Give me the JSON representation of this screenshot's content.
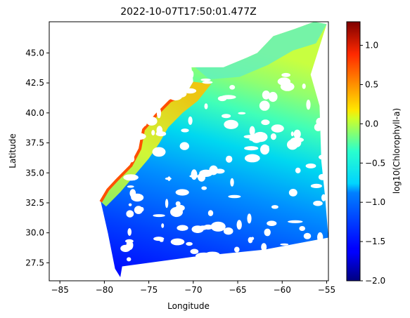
{
  "chart_data": {
    "type": "heatmap",
    "title": "2022-10-07T17:50:01.477Z",
    "xlabel": "Longitude",
    "ylabel": "Latitude",
    "xlim": [
      -86.2,
      -54.8
    ],
    "ylim": [
      26.0,
      47.6
    ],
    "x_ticks": [
      -85,
      -80,
      -75,
      -70,
      -65,
      -60,
      -55
    ],
    "x_tick_labels": [
      "−85",
      "−80",
      "−75",
      "−70",
      "−65",
      "−60",
      "−55"
    ],
    "y_ticks": [
      27.5,
      30.0,
      32.5,
      35.0,
      37.5,
      40.0,
      42.5,
      45.0
    ],
    "y_tick_labels": [
      "27.5",
      "30.0",
      "32.5",
      "35.0",
      "37.5",
      "40.0",
      "42.5",
      "45.0"
    ],
    "colorbar": {
      "label": "log10(Chlorophyll-a)",
      "colormap": "jet",
      "range": [
        -2.0,
        1.3
      ],
      "ticks": [
        -2.0,
        -1.5,
        -1.0,
        -0.5,
        0.0,
        0.5,
        1.0
      ],
      "tick_labels": [
        "−2.0",
        "−1.5",
        "−1.0",
        "−0.5",
        "0.0",
        "0.5",
        "1.0"
      ]
    },
    "swath_polygon_lonlat": [
      [
        -80.4,
        32.6
      ],
      [
        -79.6,
        33.6
      ],
      [
        -78.6,
        34.4
      ],
      [
        -77.0,
        35.6
      ],
      [
        -76.0,
        37.0
      ],
      [
        -75.6,
        38.6
      ],
      [
        -74.2,
        39.8
      ],
      [
        -72.6,
        41.0
      ],
      [
        -70.8,
        41.6
      ],
      [
        -70.0,
        42.6
      ],
      [
        -70.2,
        43.8
      ],
      [
        -66.6,
        43.8
      ],
      [
        -64.0,
        44.6
      ],
      [
        -62.8,
        45.0
      ],
      [
        -61.0,
        46.4
      ],
      [
        -58.6,
        47.0
      ],
      [
        -56.4,
        47.6
      ],
      [
        -55.0,
        47.4
      ],
      [
        -56.8,
        43.2
      ],
      [
        -55.8,
        40.6
      ],
      [
        -55.6,
        36.0
      ],
      [
        -55.2,
        33.2
      ],
      [
        -54.8,
        29.6
      ],
      [
        -62.0,
        28.6
      ],
      [
        -70.0,
        28.0
      ],
      [
        -78.0,
        27.2
      ],
      [
        -78.2,
        26.3
      ],
      [
        -78.8,
        27.0
      ],
      [
        -79.6,
        30.0
      ]
    ]
  }
}
